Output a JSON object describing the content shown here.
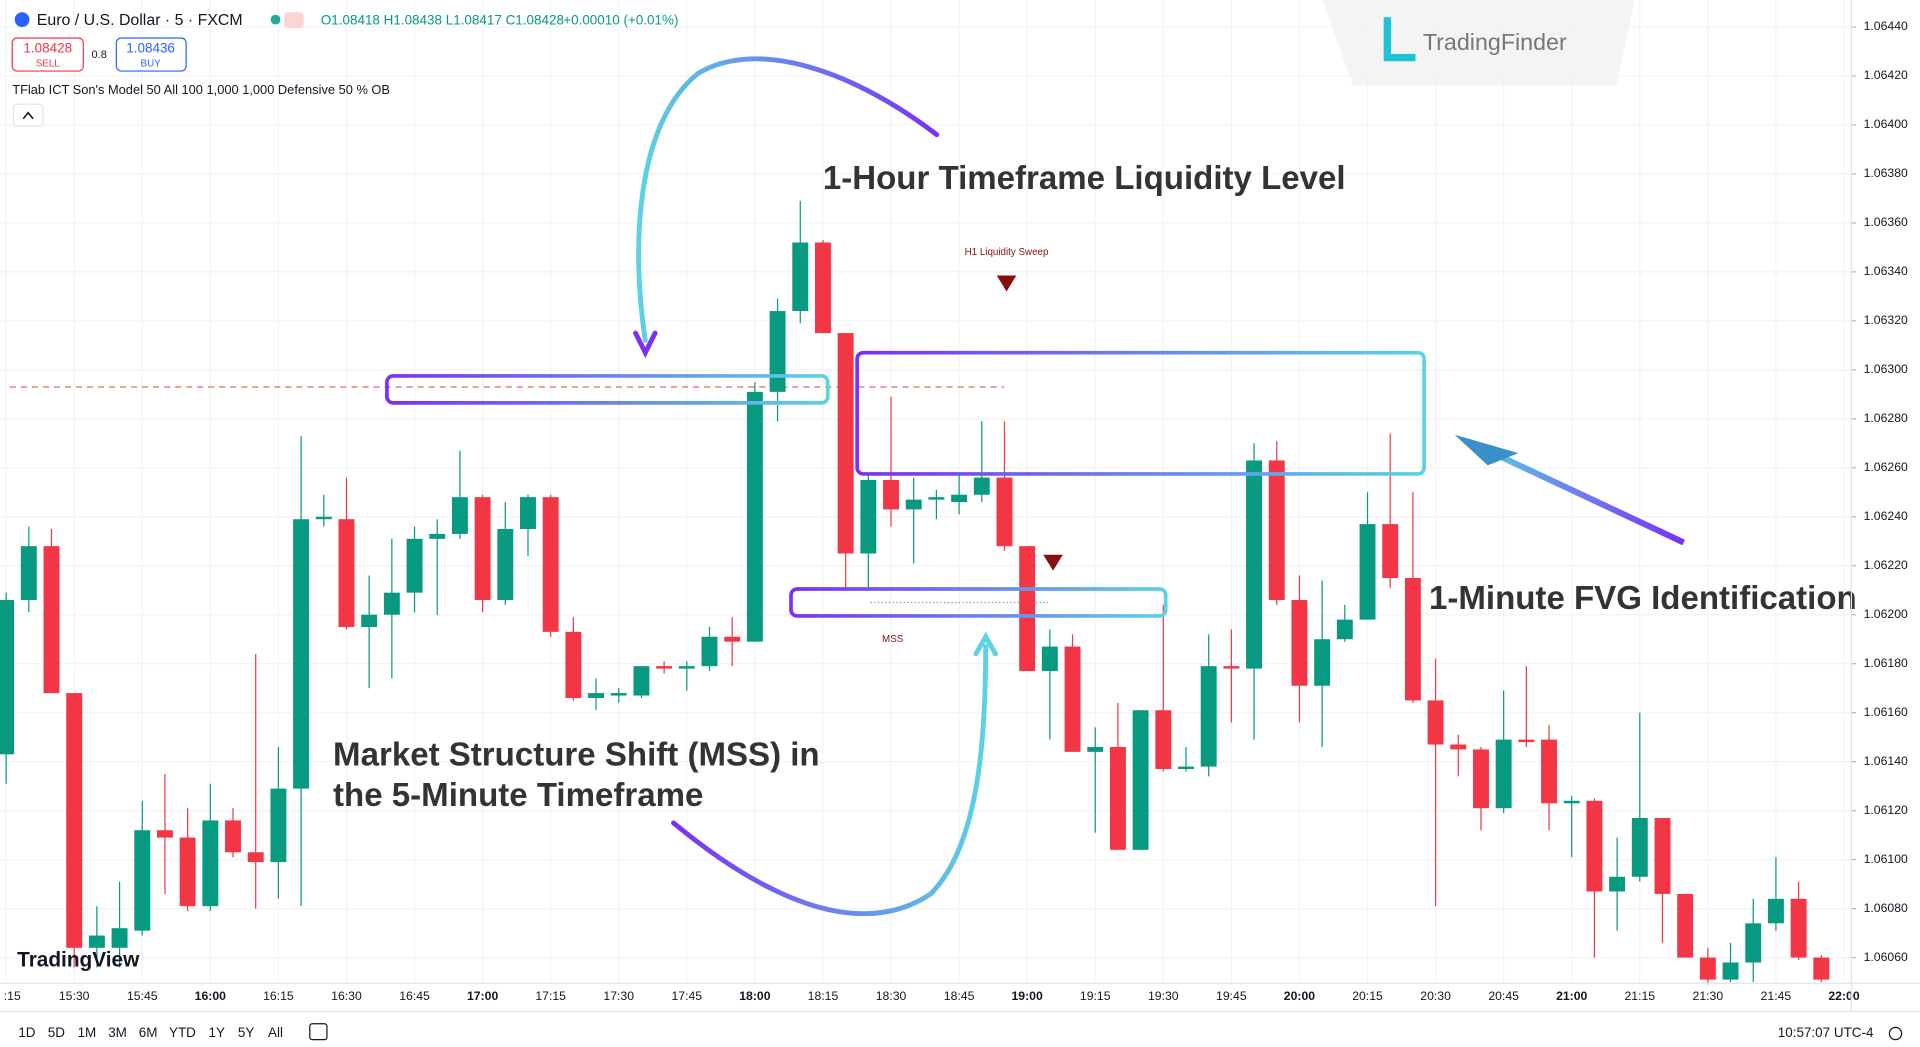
{
  "header": {
    "symbol": "Euro / U.S. Dollar · 5 · FXCM",
    "ohlc": "O1.08418 H1.08438 L1.08417 C1.08428",
    "change": "+0.00010 (+0.01%)",
    "sell_price": "1.08428",
    "sell": "SELL",
    "spread": "0.8",
    "buy_price": "1.08436",
    "buy": "BUY",
    "indicator": "TFlab ICT Son's Model 50 All 100 1,000 1,000 Defensive 50 % OB",
    "brand": "TradingFinder",
    "platform": "TradingView"
  },
  "toolbar": {
    "ranges": [
      "1D",
      "5D",
      "1M",
      "3M",
      "6M",
      "YTD",
      "1Y",
      "5Y",
      "All"
    ],
    "clock": "10:57:07 UTC-4"
  },
  "chart_data": {
    "type": "candlestick",
    "up_color": "#089981",
    "down_color": "#f23645",
    "grid": true,
    "categories": [
      ":15",
      null,
      null,
      "15:30",
      null,
      null,
      "15:45",
      null,
      null,
      "16:00",
      null,
      null,
      "16:15",
      null,
      null,
      "16:30",
      null,
      null,
      "16:45",
      null,
      null,
      "17:00",
      null,
      null,
      "17:15",
      null,
      null,
      "17:30",
      null,
      null,
      "17:45",
      null,
      null,
      "18:00",
      null,
      null,
      "18:15",
      null,
      null,
      "18:30",
      null,
      null,
      "18:45",
      null,
      null,
      "19:00",
      null,
      null,
      "19:15",
      null,
      null,
      "19:30",
      null,
      null,
      "19:45",
      null,
      null,
      "20:00",
      null,
      null,
      "20:15",
      null,
      null,
      "20:30",
      null,
      null,
      "20:45",
      null,
      null,
      "21:00",
      null,
      null,
      "21:15",
      null,
      null,
      "21:30",
      null,
      null,
      "21:45",
      null,
      null,
      "22:00"
    ],
    "open": [
      1.06143,
      1.06206,
      1.06228,
      1.06168,
      1.06064,
      1.06064,
      1.06071,
      1.06112,
      1.06109,
      1.06081,
      1.06116,
      1.06103,
      1.06099,
      1.06129,
      1.06239,
      1.06239,
      1.06195,
      1.062,
      1.06209,
      1.06231,
      1.06233,
      1.06248,
      1.06206,
      1.06235,
      1.06248,
      1.06193,
      1.06166,
      1.06167,
      1.06167,
      1.06179,
      1.06178,
      1.06179,
      1.06191,
      1.06189,
      1.06291,
      1.06324,
      1.06352,
      1.06315,
      1.06225,
      1.06255,
      1.06243,
      1.06247,
      1.06246,
      1.06249,
      1.06256,
      1.06228,
      1.06177,
      1.06187,
      1.06144,
      1.06146,
      1.06104,
      1.06161,
      1.06137,
      1.06138,
      1.06179,
      1.06178,
      1.06263,
      1.06206,
      1.06171,
      1.0619,
      1.06198,
      1.06237,
      1.06215,
      1.06165,
      1.06147,
      1.06145,
      1.06121,
      1.06149,
      1.06149,
      1.06123,
      1.06124,
      1.06087,
      1.06093,
      1.06117,
      1.06086,
      1.0606,
      1.06051,
      1.06058,
      1.06074,
      1.06084,
      1.0606,
      null
    ],
    "high": [
      1.06209,
      1.06236,
      1.06235,
      1.06168,
      1.06081,
      1.06091,
      1.06124,
      1.06135,
      1.06121,
      1.06131,
      1.06121,
      1.06184,
      1.06146,
      1.06273,
      1.06249,
      1.06256,
      1.06216,
      1.06231,
      1.06236,
      1.06239,
      1.06267,
      1.06249,
      1.06246,
      1.06249,
      1.06249,
      1.06199,
      1.06174,
      1.0617,
      1.06179,
      1.06181,
      1.06181,
      1.06195,
      1.06199,
      1.06295,
      1.06329,
      1.06369,
      1.06353,
      1.06315,
      1.06257,
      1.06289,
      1.06256,
      1.06251,
      1.06257,
      1.06279,
      1.06279,
      1.06228,
      1.06194,
      1.06192,
      1.06154,
      1.06164,
      1.06161,
      1.06204,
      1.06146,
      1.06192,
      1.06194,
      1.0627,
      1.06271,
      1.06216,
      1.06214,
      1.06204,
      1.0625,
      1.06274,
      1.0625,
      1.06182,
      1.06151,
      1.06146,
      1.06169,
      1.06179,
      1.06155,
      1.06126,
      1.06125,
      1.06109,
      1.0616,
      1.06117,
      1.06086,
      1.06064,
      1.06066,
      1.06084,
      1.06101,
      1.06091,
      1.06061,
      null
    ],
    "low": [
      1.06131,
      1.06201,
      1.06168,
      1.06056,
      1.06056,
      1.06056,
      1.06069,
      1.06086,
      1.06079,
      1.06079,
      1.06101,
      1.0608,
      1.06084,
      1.06081,
      1.06236,
      1.06194,
      1.0617,
      1.06174,
      1.06201,
      1.062,
      1.06231,
      1.06201,
      1.06204,
      1.06224,
      1.06191,
      1.06165,
      1.06161,
      1.06164,
      1.06166,
      1.06176,
      1.06169,
      1.06177,
      1.06179,
      1.06189,
      1.06279,
      1.06319,
      1.06315,
      1.06211,
      1.06211,
      1.06236,
      1.06221,
      1.06239,
      1.06241,
      1.06246,
      1.06226,
      1.06177,
      1.06149,
      1.06144,
      1.06111,
      1.06104,
      1.06104,
      1.06136,
      1.06136,
      1.06134,
      1.06156,
      1.06149,
      1.06204,
      1.06156,
      1.06146,
      1.06189,
      1.06198,
      1.06211,
      1.06164,
      1.06081,
      1.06134,
      1.06112,
      1.06119,
      1.06146,
      1.06112,
      1.06101,
      1.0606,
      1.06071,
      1.06091,
      1.06066,
      1.0606,
      1.06049,
      1.0605,
      1.0605,
      1.06071,
      1.06059,
      1.0605,
      null
    ],
    "close": [
      1.06206,
      1.06228,
      1.06168,
      1.06064,
      1.06069,
      1.06072,
      1.06112,
      1.06109,
      1.06081,
      1.06116,
      1.06103,
      1.06099,
      1.06129,
      1.06239,
      1.0624,
      1.06195,
      1.062,
      1.06209,
      1.06231,
      1.06233,
      1.06248,
      1.06206,
      1.06235,
      1.06248,
      1.06193,
      1.06166,
      1.06168,
      1.06168,
      1.06179,
      1.06178,
      1.06179,
      1.06191,
      1.06189,
      1.06291,
      1.06324,
      1.06352,
      1.06315,
      1.06225,
      1.06255,
      1.06243,
      1.06247,
      1.06248,
      1.06249,
      1.06256,
      1.06228,
      1.06177,
      1.06187,
      1.06144,
      1.06146,
      1.06104,
      1.06161,
      1.06137,
      1.06138,
      1.06179,
      1.06178,
      1.06263,
      1.06206,
      1.06171,
      1.0619,
      1.06198,
      1.06237,
      1.06215,
      1.06165,
      1.06147,
      1.06145,
      1.06121,
      1.06149,
      1.06148,
      1.06123,
      1.06124,
      1.06087,
      1.06093,
      1.06117,
      1.06086,
      1.0606,
      1.06051,
      1.06058,
      1.06074,
      1.06084,
      1.0606,
      1.06051,
      null
    ],
    "ylim": [
      1.0605,
      1.0645
    ],
    "yticks": [
      {
        "value": 1.0606,
        "label": "1.06060"
      },
      {
        "value": 1.0608,
        "label": "1.06080"
      },
      {
        "value": 1.061,
        "label": "1.06100"
      },
      {
        "value": 1.0612,
        "label": "1.06120"
      },
      {
        "value": 1.0614,
        "label": "1.06140"
      },
      {
        "value": 1.0616,
        "label": "1.06160"
      },
      {
        "value": 1.0618,
        "label": "1.06180"
      },
      {
        "value": 1.062,
        "label": "1.06200"
      },
      {
        "value": 1.0622,
        "label": "1.06220"
      },
      {
        "value": 1.0624,
        "label": "1.06240"
      },
      {
        "value": 1.0626,
        "label": "1.06260"
      },
      {
        "value": 1.0628,
        "label": "1.06280"
      },
      {
        "value": 1.063,
        "label": "1.06300"
      },
      {
        "value": 1.0632,
        "label": "1.06320"
      },
      {
        "value": 1.0634,
        "label": "1.06340"
      },
      {
        "value": 1.0636,
        "label": "1.06360"
      },
      {
        "value": 1.0638,
        "label": "1.06380"
      },
      {
        "value": 1.064,
        "label": "1.06400"
      },
      {
        "value": 1.0642,
        "label": "1.06420"
      },
      {
        "value": 1.0644,
        "label": "1.06440"
      }
    ],
    "levels": {
      "liquidity": 1.06293,
      "mss": 1.06205
    },
    "annotations": {
      "h1_level": "1-Hour Timeframe Liquidity Level",
      "fvg": "1-Minute FVG Identification",
      "mss_lines": [
        "Market Structure Shift (MSS) in",
        "the 5-Minute Timeframe"
      ],
      "sweep_label": "H1 Liquidity Sweep",
      "mss_label": "MSS"
    }
  }
}
